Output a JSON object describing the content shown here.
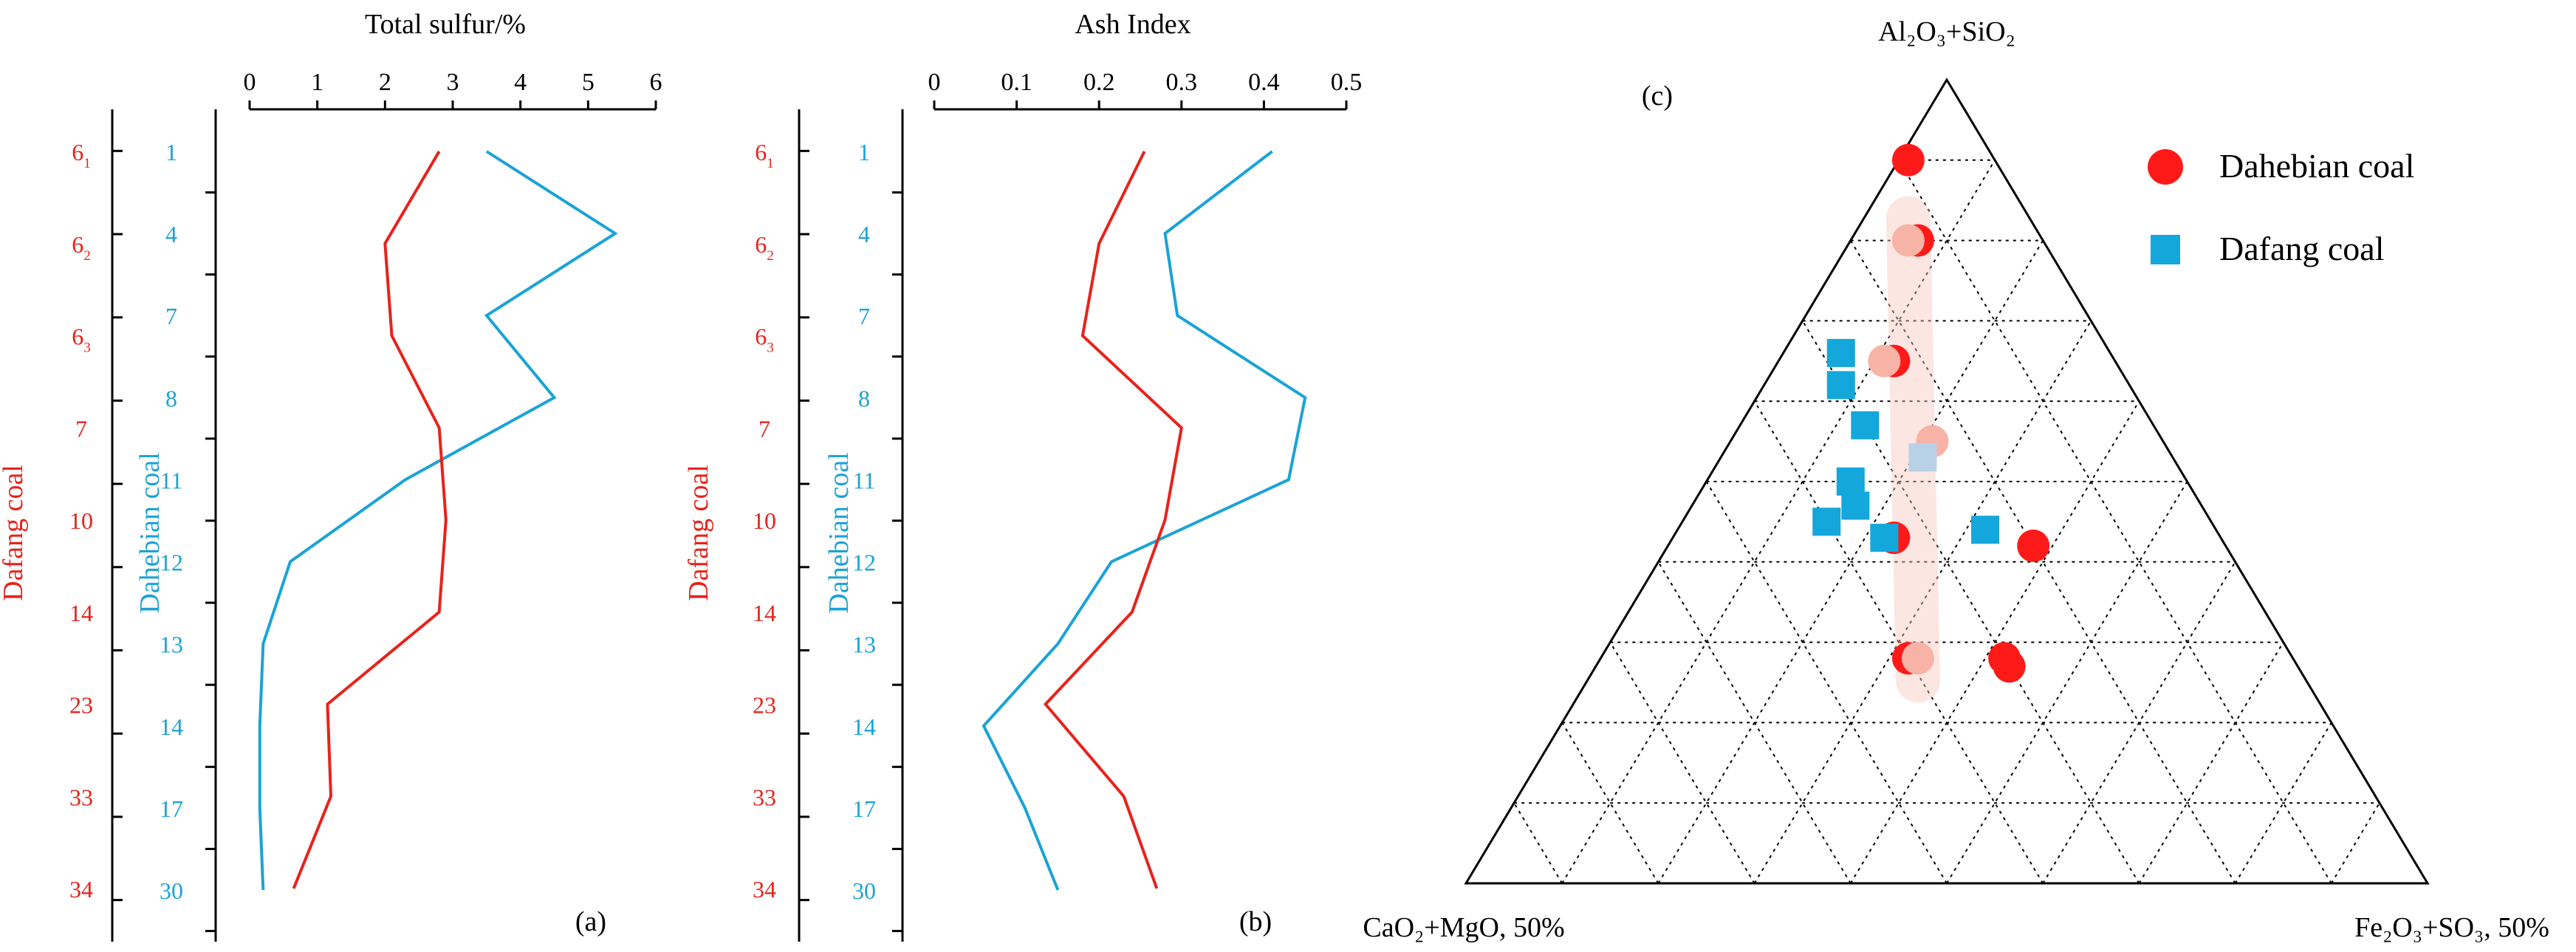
{
  "chart_data": [
    {
      "type": "line",
      "panel_label": "(a)",
      "title": "Total sulfur/%",
      "x_ticks": [
        "0",
        "1",
        "2",
        "3",
        "4",
        "5",
        "6"
      ],
      "xlim": [
        0,
        6
      ],
      "left_axis_label": "Dafang coal",
      "left_categories": [
        "6",
        "6",
        "6",
        "7",
        "10",
        "14",
        "23",
        "33",
        "34"
      ],
      "left_category_subscripts": [
        "1",
        "2",
        "3",
        "",
        "",
        "",
        "",
        "",
        ""
      ],
      "right_axis_label": "Dahebian coal",
      "right_categories": [
        "1",
        "4",
        "7",
        "8",
        "11",
        "12",
        "13",
        "14",
        "17",
        "30"
      ],
      "series": [
        {
          "name": "Dafang coal",
          "color": "#e8221b",
          "values": [
            2.8,
            2.0,
            2.1,
            2.8,
            2.9,
            2.8,
            1.15,
            1.2,
            0.65
          ]
        },
        {
          "name": "Dahebian coal",
          "color": "#1aa3d6",
          "values": [
            3.5,
            5.4,
            3.5,
            4.5,
            2.3,
            0.6,
            0.2,
            0.15,
            0.15,
            0.2
          ]
        }
      ]
    },
    {
      "type": "line",
      "panel_label": "(b)",
      "title": "Ash Index",
      "x_ticks": [
        "0",
        "0.1",
        "0.2",
        "0.3",
        "0.4",
        "0.5"
      ],
      "xlim": [
        0,
        0.5
      ],
      "left_axis_label": "Dafang coal",
      "left_categories": [
        "6",
        "6",
        "6",
        "7",
        "10",
        "14",
        "23",
        "33",
        "34"
      ],
      "left_category_subscripts": [
        "1",
        "2",
        "3",
        "",
        "",
        "",
        "",
        "",
        ""
      ],
      "right_axis_label": "Dahebian coal",
      "right_categories": [
        "1",
        "4",
        "7",
        "8",
        "11",
        "12",
        "13",
        "14",
        "17",
        "30"
      ],
      "series": [
        {
          "name": "Dafang coal",
          "color": "#e8221b",
          "values": [
            0.255,
            0.2,
            0.18,
            0.3,
            0.28,
            0.24,
            0.135,
            0.23,
            0.27
          ]
        },
        {
          "name": "Dahebian coal",
          "color": "#1aa3d6",
          "values": [
            0.41,
            0.28,
            0.295,
            0.45,
            0.43,
            0.215,
            0.15,
            0.06,
            0.11,
            0.15
          ]
        }
      ]
    },
    {
      "type": "scatter",
      "subtype": "ternary",
      "panel_label": "(c)",
      "apex_top": "Al₂O₃+SiO₂",
      "apex_left": "CaO₂+MgO, 50%",
      "apex_right": "Fe₂O₃+SO₃, 50%",
      "series": [
        {
          "name": "Dahebian coal",
          "color": "#ff1a1a",
          "marker": "circle",
          "points": [
            [
              0.9,
              0.09
            ],
            [
              0.8,
              0.13
            ],
            [
              0.65,
              0.23
            ],
            [
              0.43,
              0.34
            ],
            [
              0.42,
              0.2
            ],
            [
              0.27,
              0.3
            ],
            [
              0.28,
              0.4
            ],
            [
              0.28,
              0.3
            ]
          ]
        },
        {
          "name": "Dafang coal",
          "color": "#13a7dc",
          "marker": "square",
          "points": [
            [
              0.66,
              0.28
            ],
            [
              0.62,
              0.3
            ],
            [
              0.57,
              0.3
            ],
            [
              0.5,
              0.35
            ],
            [
              0.47,
              0.36
            ],
            [
              0.45,
              0.4
            ],
            [
              0.43,
              0.35
            ],
            [
              0.44,
              0.24
            ]
          ]
        },
        {
          "name": "Trend band",
          "color": "#f6b3a6",
          "marker": "circle-light",
          "points": [
            [
              0.8,
              0.14
            ],
            [
              0.65,
              0.24
            ],
            [
              0.55,
              0.24
            ],
            [
              0.28,
              0.39
            ]
          ]
        },
        {
          "name": "Trend band",
          "color": "#b9d1e6",
          "marker": "square-light",
          "points": [
            [
              0.53,
              0.26
            ]
          ]
        }
      ]
    }
  ]
}
